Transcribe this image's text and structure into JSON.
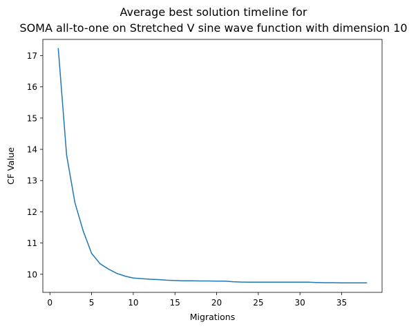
{
  "chart_data": {
    "type": "line",
    "title_lines": [
      "Average best solution timeline for",
      "SOMA all-to-one on Stretched V sine wave function with dimension 10"
    ],
    "xlabel": "Migrations",
    "ylabel": "CF Value",
    "xlim": [
      -0.85,
      39.85
    ],
    "ylim": [
      9.42,
      17.52
    ],
    "xticks": [
      0,
      5,
      10,
      15,
      20,
      25,
      30,
      35
    ],
    "yticks": [
      10,
      11,
      12,
      13,
      14,
      15,
      16,
      17
    ],
    "grid": false,
    "line_color": "#1f77b4",
    "series": [
      {
        "x": [
          1,
          2,
          3,
          4,
          5,
          6,
          7,
          8,
          9,
          10,
          11,
          12,
          13,
          14,
          15,
          16,
          17,
          18,
          19,
          20,
          21,
          22,
          23,
          24,
          25,
          26,
          27,
          28,
          29,
          30,
          31,
          32,
          33,
          34,
          35,
          36,
          37,
          38
        ],
        "values": [
          17.23,
          13.82,
          12.29,
          11.38,
          10.67,
          10.34,
          10.17,
          10.03,
          9.94,
          9.88,
          9.86,
          9.84,
          9.83,
          9.81,
          9.8,
          9.79,
          9.79,
          9.785,
          9.785,
          9.78,
          9.78,
          9.76,
          9.75,
          9.745,
          9.745,
          9.745,
          9.745,
          9.745,
          9.745,
          9.745,
          9.745,
          9.735,
          9.73,
          9.73,
          9.725,
          9.725,
          9.725,
          9.725
        ]
      }
    ]
  }
}
